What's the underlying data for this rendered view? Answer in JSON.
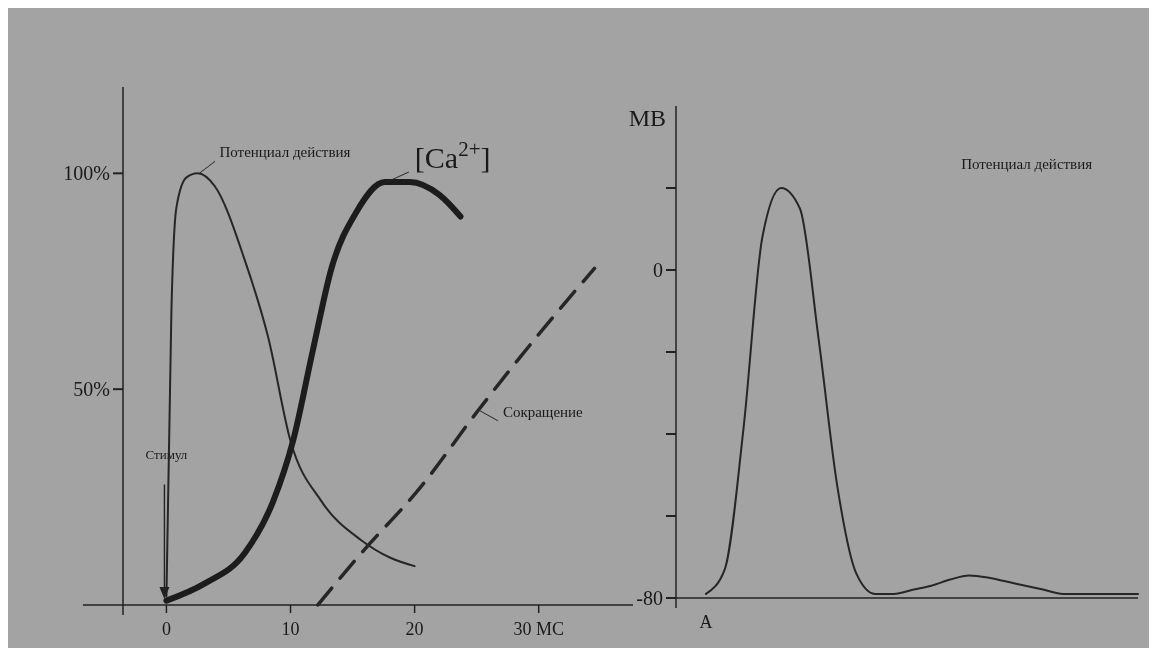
{
  "chart_data": [
    {
      "type": "line",
      "xlim": [
        -3.5,
        37.6
      ],
      "ylim": [
        0,
        120
      ],
      "xticks": [
        0,
        10,
        20,
        {
          "value": 30,
          "label": "30 МС"
        }
      ],
      "yticks": [
        {
          "value": 100,
          "label": "100%"
        },
        {
          "value": 50,
          "label": "50%"
        }
      ],
      "series": [
        {
          "name": "Потенциал действия",
          "color": "#262626",
          "x": [
            0,
            0.4,
            0.8,
            1.6,
            2.5,
            3.9,
            6.3,
            8.2,
            10,
            12.5,
            15.7,
            18,
            20
          ],
          "values": [
            2,
            68,
            92,
            99,
            100,
            97,
            80,
            62,
            38,
            24,
            15,
            11,
            9
          ]
        },
        {
          "name": "[Ca$^{2+}$]",
          "color": "#1c1c1c",
          "x": [
            0,
            3.1,
            6.3,
            8.6,
            10.2,
            11.8,
            13.3,
            15.3,
            17.6,
            19.6,
            22,
            23.7
          ],
          "values": [
            1,
            5,
            12,
            24,
            38,
            59,
            78,
            91,
            98,
            98,
            95,
            90
          ]
        },
        {
          "name": "Сокращение",
          "color": "#262626",
          "line_style": "dashed",
          "x": [
            12.2,
            15.7,
            20.4,
            25.1,
            29.8,
            34.5
          ],
          "values": [
            0,
            12,
            27,
            45,
            62,
            78
          ]
        }
      ],
      "annotations": [
        {
          "text": "Стимул",
          "x": 0,
          "y": 33
        }
      ]
    },
    {
      "type": "line",
      "ylabel": "МВ",
      "ylim": [
        -80,
        40
      ],
      "yticks": [
        {
          "value": 20,
          "label": null
        },
        0,
        {
          "value": -20,
          "label": null
        },
        {
          "value": -40,
          "label": null
        },
        {
          "value": -60,
          "label": null
        },
        -80
      ],
      "categories": [
        "A",
        null,
        null,
        null,
        null,
        null,
        null,
        null,
        null,
        null,
        null,
        null,
        null,
        null,
        null,
        null,
        null,
        null,
        null,
        null,
        null,
        null,
        null,
        null
      ],
      "series": [
        {
          "name": "Потенциал действия",
          "color": "#262626",
          "values": [
            -79,
            -73,
            -38.5,
            8,
            20,
            15,
            -17,
            -53,
            -74,
            -79,
            -79,
            -78,
            -77,
            -75.5,
            -74.5,
            -75,
            -76,
            -77,
            -78,
            -79,
            -79,
            -79,
            -79,
            -79
          ]
        }
      ]
    }
  ]
}
